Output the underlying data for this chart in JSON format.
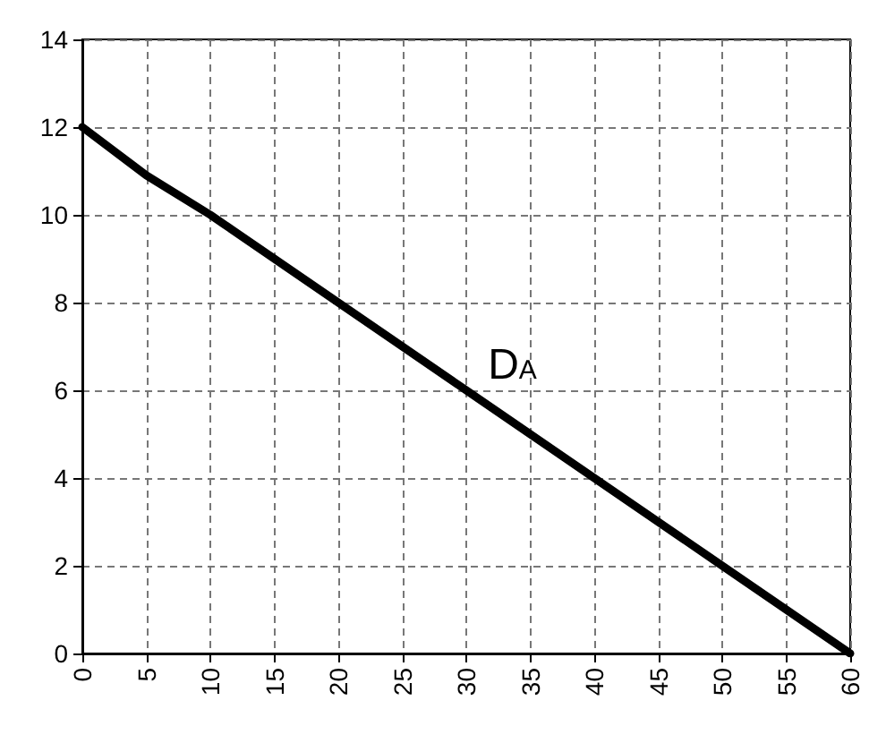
{
  "chart_data": {
    "type": "line",
    "x": [
      0,
      5,
      10,
      15,
      20,
      25,
      30,
      35,
      40,
      45,
      50,
      55,
      60
    ],
    "series": [
      {
        "color": "#000000",
        "values": [
          12,
          10.9,
          10,
          9,
          8,
          7,
          6,
          5,
          4,
          3,
          2,
          1,
          0
        ]
      }
    ],
    "xlim": [
      0,
      60
    ],
    "xticks": [
      0,
      5,
      10,
      15,
      20,
      25,
      30,
      35,
      40,
      45,
      50,
      55,
      60
    ],
    "ylim": [
      0,
      14
    ],
    "yticks": [
      0,
      2,
      4,
      6,
      8,
      10,
      12,
      14
    ],
    "grid": true,
    "marker": "none",
    "line_style": "solid",
    "annotations": [
      "D$_{A}$"
    ]
  }
}
